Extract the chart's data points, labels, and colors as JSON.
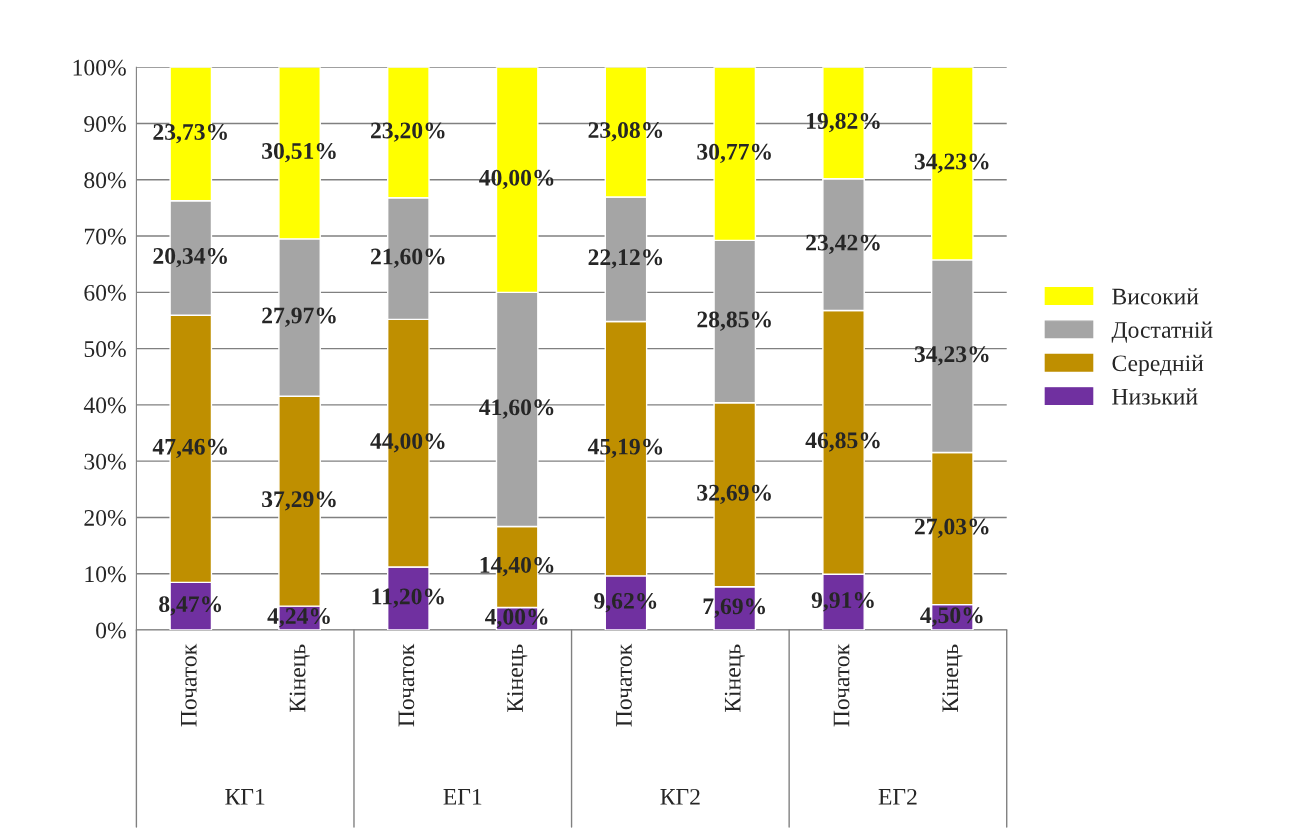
{
  "chart_data": {
    "type": "bar",
    "stacked": true,
    "categories": [
      "Початок",
      "Кінець",
      "Початок",
      "Кінець",
      "Початок",
      "Кінець",
      "Початок",
      "Кінець"
    ],
    "annotations": [
      "КГ1",
      "ЕГ1",
      "КГ2",
      "ЕГ2"
    ],
    "series": [
      {
        "name": "Низький",
        "color": "#7030a0",
        "values": [
          8.47,
          4.24,
          11.2,
          4.0,
          9.62,
          7.69,
          9.91,
          4.5
        ],
        "value_labels": [
          "8,47%",
          "4,24%",
          "11,20%",
          "4,00%",
          "9,62%",
          "7,69%",
          "9,91%",
          "4,50%"
        ]
      },
      {
        "name": "Середній",
        "color": "#bf8f00",
        "values": [
          47.46,
          37.29,
          44.0,
          14.4,
          45.19,
          32.69,
          46.85,
          27.03
        ],
        "value_labels": [
          "47,46%",
          "37,29%",
          "44,00%",
          "14,40%",
          "45,19%",
          "32,69%",
          "46,85%",
          "27,03%"
        ]
      },
      {
        "name": "Достатній",
        "color": "#a5a5a5",
        "values": [
          20.34,
          27.97,
          21.6,
          41.6,
          22.12,
          28.85,
          23.42,
          34.23
        ],
        "value_labels": [
          "20,34%",
          "27,97%",
          "21,60%",
          "41,60%",
          "22,12%",
          "28,85%",
          "23,42%",
          "34,23%"
        ]
      },
      {
        "name": "Високий",
        "color": "#ffff00",
        "values": [
          23.73,
          30.51,
          23.2,
          40.0,
          23.08,
          30.77,
          19.82,
          34.23
        ],
        "value_labels": [
          "23,73%",
          "30,51%",
          "23,20%",
          "40,00%",
          "23,08%",
          "30,77%",
          "19,82%",
          "34,23%"
        ]
      }
    ],
    "ylim": [
      0,
      100
    ],
    "yticks": [
      {
        "value": 0,
        "label": "0%"
      },
      {
        "value": 10,
        "label": "10%"
      },
      {
        "value": 20,
        "label": "20%"
      },
      {
        "value": 30,
        "label": "30%"
      },
      {
        "value": 40,
        "label": "40%"
      },
      {
        "value": 50,
        "label": "50%"
      },
      {
        "value": 60,
        "label": "60%"
      },
      {
        "value": 70,
        "label": "70%"
      },
      {
        "value": 80,
        "label": "80%"
      },
      {
        "value": 90,
        "label": "90%"
      },
      {
        "value": 100,
        "label": "100%"
      }
    ],
    "grid": "y",
    "legend": "right"
  }
}
